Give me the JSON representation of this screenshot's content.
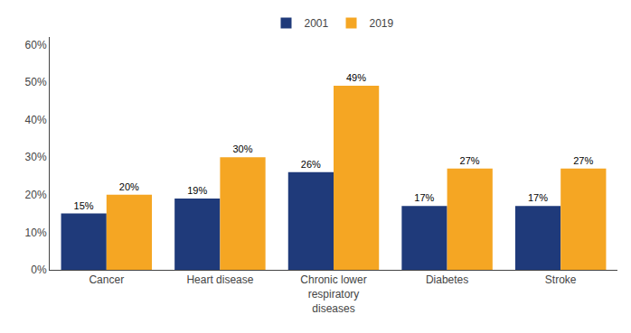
{
  "chart_data": {
    "type": "bar",
    "categories": [
      "Cancer",
      "Heart disease",
      "Chronic lower\nrespiratory\ndiseases",
      "Diabetes",
      "Stroke"
    ],
    "series": [
      {
        "name": "2001",
        "color": "#1f3a7a",
        "values": [
          15,
          19,
          26,
          17,
          17
        ],
        "value_labels": [
          "15%",
          "19%",
          "26%",
          "17%",
          "17%"
        ]
      },
      {
        "name": "2019",
        "color": "#f5a623",
        "values": [
          20,
          30,
          49,
          27,
          27
        ],
        "value_labels": [
          "20%",
          "30%",
          "49%",
          "27%",
          "27%"
        ]
      }
    ],
    "ylim": [
      0,
      62
    ],
    "yticks": [
      {
        "value": 0,
        "label": "0%"
      },
      {
        "value": 10,
        "label": "10%"
      },
      {
        "value": 20,
        "label": "20%"
      },
      {
        "value": 30,
        "label": "30%"
      },
      {
        "value": 40,
        "label": "40%"
      },
      {
        "value": 50,
        "label": "50%"
      },
      {
        "value": 60,
        "label": "60%"
      }
    ],
    "grid": false,
    "legend": "upper center",
    "data_labels": true
  }
}
